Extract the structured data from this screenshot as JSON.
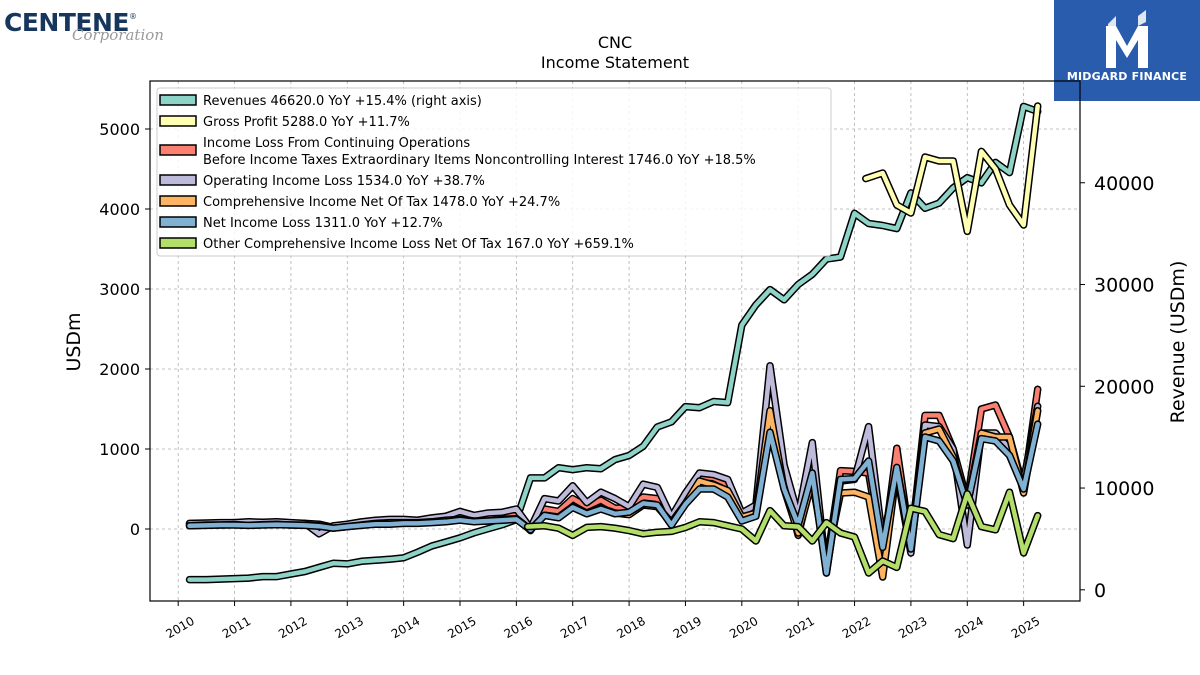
{
  "brand": {
    "name": "CENTENE",
    "sub": "Corporation",
    "mark": "®"
  },
  "badge": {
    "name": "MIDGARD FINANCE",
    "icon": "midgard-logo-icon",
    "color": "#2a5cad"
  },
  "chart_data": {
    "type": "line",
    "title": "CNC",
    "subtitle": "Income Statement",
    "ylabel": "USDm",
    "ylabel_right": "Revenue (USDm)",
    "ylim": [
      -900,
      5600
    ],
    "ylim_right": [
      -1100,
      50000
    ],
    "yticks": [
      0,
      1000,
      2000,
      3000,
      4000,
      5000
    ],
    "yticks_right": [
      0,
      10000,
      20000,
      30000,
      40000
    ],
    "xlim": [
      2009.5,
      2026.0
    ],
    "xticks": [
      "2010",
      "2011",
      "2012",
      "2013",
      "2014",
      "2015",
      "2016",
      "2017",
      "2018",
      "2019",
      "2020",
      "2021",
      "2022",
      "2023",
      "2024",
      "2025"
    ],
    "grid": true,
    "legend_position": "top-left",
    "series": [
      {
        "name": "Revenues",
        "legend": "Revenues  46620.0 YoY +15.4% (right axis)",
        "color": "#8dd3c7",
        "axis": "right",
        "x": [
          2010.2,
          2010.5,
          2010.75,
          2011.0,
          2011.25,
          2011.5,
          2011.75,
          2012.0,
          2012.25,
          2012.5,
          2012.75,
          2013.0,
          2013.25,
          2013.5,
          2013.75,
          2014.0,
          2014.25,
          2014.5,
          2014.75,
          2015.0,
          2015.25,
          2015.5,
          2015.75,
          2016.0,
          2016.25,
          2016.5,
          2016.75,
          2017.0,
          2017.25,
          2017.5,
          2017.75,
          2018.0,
          2018.25,
          2018.5,
          2018.75,
          2019.0,
          2019.25,
          2019.5,
          2019.75,
          2020.0,
          2020.25,
          2020.5,
          2020.75,
          2021.0,
          2021.25,
          2021.5,
          2021.75,
          2022.0,
          2022.25,
          2022.5,
          2022.75,
          2023.0,
          2023.25,
          2023.5,
          2023.75,
          2024.0,
          2024.25,
          2024.5,
          2024.75,
          2025.0,
          2025.25
        ],
        "values": [
          1000,
          1000,
          1050,
          1100,
          1150,
          1300,
          1300,
          1550,
          1800,
          2200,
          2600,
          2550,
          2800,
          2900,
          3000,
          3150,
          3700,
          4300,
          4700,
          5100,
          5600,
          6000,
          6400,
          6900,
          11000,
          11000,
          12000,
          11800,
          12000,
          11900,
          12800,
          13200,
          14100,
          16000,
          16500,
          18000,
          17900,
          18500,
          18400,
          26000,
          28000,
          29500,
          28500,
          30000,
          31000,
          32500,
          32700,
          37000,
          36000,
          35800,
          35500,
          39000,
          37500,
          38000,
          39500,
          40500,
          40000,
          42000,
          41000,
          47500,
          47000
        ]
      },
      {
        "name": "Gross Profit",
        "legend": "Gross Profit  5288.0 YoY +11.7%",
        "color": "#ffffb3",
        "axis": "left",
        "x": [
          2022.2,
          2022.5,
          2022.75,
          2023.0,
          2023.25,
          2023.5,
          2023.75,
          2024.0,
          2024.25,
          2024.5,
          2024.75,
          2025.0,
          2025.25
        ],
        "values": [
          4380,
          4450,
          4050,
          3950,
          4650,
          4600,
          4600,
          3720,
          4720,
          4500,
          4050,
          3800,
          5288
        ]
      },
      {
        "name": "Income Loss From Continuing Operations Before Income Taxes Extraordinary Items Noncontrolling Interest",
        "legend": [
          "Income Loss From Continuing Operations",
          "Before Income Taxes Extraordinary Items Noncontrolling Interest  1746.0 YoY +18.5%"
        ],
        "color": "#fb8072",
        "axis": "left",
        "x": [
          2010.2,
          2010.5,
          2010.75,
          2011.0,
          2011.25,
          2011.5,
          2011.75,
          2012.0,
          2012.25,
          2012.5,
          2012.75,
          2013.0,
          2013.25,
          2013.5,
          2013.75,
          2014.0,
          2014.25,
          2014.5,
          2014.75,
          2015.0,
          2015.25,
          2015.5,
          2015.75,
          2016.0,
          2016.25,
          2016.5,
          2016.75,
          2017.0,
          2017.25,
          2017.5,
          2017.75,
          2018.0,
          2018.25,
          2018.5,
          2018.75,
          2019.0,
          2019.25,
          2019.5,
          2019.75,
          2020.0,
          2020.25,
          2020.5,
          2020.75,
          2021.0,
          2021.25,
          2021.5,
          2021.75,
          2022.0,
          2022.25,
          2022.5,
          2022.75,
          2023.0,
          2023.25,
          2023.5,
          2023.75,
          2024.0,
          2024.25,
          2024.5,
          2024.75,
          2025.0,
          2025.25
        ],
        "values": [
          60,
          70,
          70,
          80,
          70,
          75,
          80,
          70,
          70,
          60,
          20,
          40,
          60,
          90,
          100,
          110,
          110,
          130,
          150,
          170,
          140,
          140,
          160,
          170,
          -20,
          250,
          220,
          380,
          280,
          360,
          260,
          270,
          400,
          380,
          100,
          380,
          650,
          640,
          560,
          200,
          280,
          1400,
          600,
          -80,
          650,
          -450,
          730,
          720,
          700,
          -350,
          1010,
          -200,
          1420,
          1420,
          1000,
          350,
          1500,
          1550,
          1150,
          500,
          1746
        ]
      },
      {
        "name": "Operating Income Loss",
        "legend": "Operating Income Loss  1534.0 YoY +38.7%",
        "color": "#bebada",
        "axis": "left",
        "x": [
          2010.2,
          2010.5,
          2010.75,
          2011.0,
          2011.25,
          2011.5,
          2011.75,
          2012.0,
          2012.25,
          2012.5,
          2012.75,
          2013.0,
          2013.25,
          2013.5,
          2013.75,
          2014.0,
          2014.25,
          2014.5,
          2014.75,
          2015.0,
          2015.25,
          2015.5,
          2015.75,
          2016.0,
          2016.25,
          2016.5,
          2016.75,
          2017.0,
          2017.25,
          2017.5,
          2017.75,
          2018.0,
          2018.25,
          2018.5,
          2018.75,
          2019.0,
          2019.25,
          2019.5,
          2019.75,
          2020.0,
          2020.25,
          2020.5,
          2020.75,
          2021.0,
          2021.25,
          2021.5,
          2021.75,
          2022.0,
          2022.25,
          2022.5,
          2022.75,
          2023.0,
          2023.25,
          2023.5,
          2023.75,
          2024.0,
          2024.25,
          2024.5,
          2024.75,
          2025.0,
          2025.25
        ],
        "values": [
          70,
          75,
          80,
          80,
          90,
          85,
          90,
          80,
          70,
          -60,
          40,
          60,
          90,
          110,
          120,
          120,
          110,
          140,
          160,
          220,
          170,
          200,
          210,
          250,
          10,
          380,
          350,
          540,
          330,
          460,
          380,
          280,
          560,
          520,
          150,
          450,
          700,
          680,
          620,
          200,
          300,
          2040,
          800,
          170,
          1080,
          -550,
          600,
          620,
          1280,
          -150,
          700,
          -300,
          1300,
          1280,
          1000,
          -200,
          1200,
          1200,
          1000,
          600,
          1534
        ]
      },
      {
        "name": "Comprehensive Income Net Of Tax",
        "legend": "Comprehensive Income Net Of Tax  1478.0 YoY +24.7%",
        "color": "#fdb462",
        "axis": "left",
        "x": [
          2010.2,
          2010.5,
          2010.75,
          2011.0,
          2011.25,
          2011.5,
          2011.75,
          2012.0,
          2012.25,
          2012.5,
          2012.75,
          2013.0,
          2013.25,
          2013.5,
          2013.75,
          2014.0,
          2014.25,
          2014.5,
          2014.75,
          2015.0,
          2015.25,
          2015.5,
          2015.75,
          2016.0,
          2016.25,
          2016.5,
          2016.75,
          2017.0,
          2017.25,
          2017.5,
          2017.75,
          2018.0,
          2018.25,
          2018.5,
          2018.75,
          2019.0,
          2019.25,
          2019.5,
          2019.75,
          2020.0,
          2020.25,
          2020.5,
          2020.75,
          2021.0,
          2021.25,
          2021.5,
          2021.75,
          2022.0,
          2022.25,
          2022.5,
          2022.75,
          2023.0,
          2023.25,
          2023.5,
          2023.75,
          2024.0,
          2024.25,
          2024.5,
          2024.75,
          2025.0,
          2025.25
        ],
        "values": [
          40,
          50,
          50,
          55,
          45,
          55,
          60,
          50,
          50,
          40,
          10,
          30,
          50,
          70,
          80,
          80,
          80,
          90,
          110,
          120,
          100,
          100,
          120,
          130,
          -10,
          170,
          150,
          280,
          200,
          260,
          200,
          180,
          300,
          280,
          80,
          320,
          600,
          550,
          480,
          150,
          200,
          1480,
          500,
          -50,
          600,
          -400,
          450,
          460,
          400,
          -600,
          750,
          -150,
          1200,
          1250,
          900,
          300,
          1200,
          1150,
          1150,
          450,
          1478
        ]
      },
      {
        "name": "Net Income Loss",
        "legend": "Net Income Loss  1311.0 YoY +12.7%",
        "color": "#80b1d3",
        "axis": "left",
        "x": [
          2010.2,
          2010.5,
          2010.75,
          2011.0,
          2011.25,
          2011.5,
          2011.75,
          2012.0,
          2012.25,
          2012.5,
          2012.75,
          2013.0,
          2013.25,
          2013.5,
          2013.75,
          2014.0,
          2014.25,
          2014.5,
          2014.75,
          2015.0,
          2015.25,
          2015.5,
          2015.75,
          2016.0,
          2016.25,
          2016.5,
          2016.75,
          2017.0,
          2017.25,
          2017.5,
          2017.75,
          2018.0,
          2018.25,
          2018.5,
          2018.75,
          2019.0,
          2019.25,
          2019.5,
          2019.75,
          2020.0,
          2020.25,
          2020.5,
          2020.75,
          2021.0,
          2021.25,
          2021.5,
          2021.75,
          2022.0,
          2022.25,
          2022.5,
          2022.75,
          2023.0,
          2023.25,
          2023.5,
          2023.75,
          2024.0,
          2024.25,
          2024.5,
          2024.75,
          2025.0,
          2025.25
        ],
        "values": [
          40,
          45,
          50,
          50,
          45,
          50,
          55,
          50,
          45,
          35,
          10,
          30,
          45,
          60,
          60,
          70,
          70,
          80,
          90,
          110,
          90,
          100,
          110,
          120,
          -10,
          170,
          140,
          270,
          190,
          250,
          190,
          210,
          320,
          300,
          50,
          310,
          500,
          500,
          400,
          100,
          160,
          1210,
          500,
          50,
          700,
          -550,
          620,
          630,
          850,
          -230,
          770,
          -250,
          1150,
          1100,
          850,
          300,
          1130,
          1100,
          920,
          500,
          1311
        ]
      },
      {
        "name": "Other Comprehensive Income Loss Net Of Tax",
        "legend": "Other Comprehensive Income Loss Net Of Tax  167.0 YoY +659.1%",
        "color": "#b3de69",
        "axis": "left",
        "x": [
          2016.2,
          2016.5,
          2016.75,
          2017.0,
          2017.25,
          2017.5,
          2017.75,
          2018.0,
          2018.25,
          2018.5,
          2018.75,
          2019.0,
          2019.25,
          2019.5,
          2019.75,
          2020.0,
          2020.25,
          2020.5,
          2020.75,
          2021.0,
          2021.25,
          2021.5,
          2021.75,
          2022.0,
          2022.25,
          2022.5,
          2022.75,
          2023.0,
          2023.25,
          2023.5,
          2023.75,
          2024.0,
          2024.25,
          2024.5,
          2024.75,
          2025.0,
          2025.25
        ],
        "values": [
          30,
          40,
          10,
          -80,
          20,
          30,
          10,
          -20,
          -60,
          -40,
          -30,
          20,
          90,
          80,
          40,
          0,
          -150,
          230,
          40,
          30,
          -150,
          80,
          -50,
          -100,
          -550,
          -400,
          -480,
          260,
          220,
          -70,
          -120,
          440,
          30,
          -10,
          460,
          -300,
          167
        ]
      }
    ]
  }
}
